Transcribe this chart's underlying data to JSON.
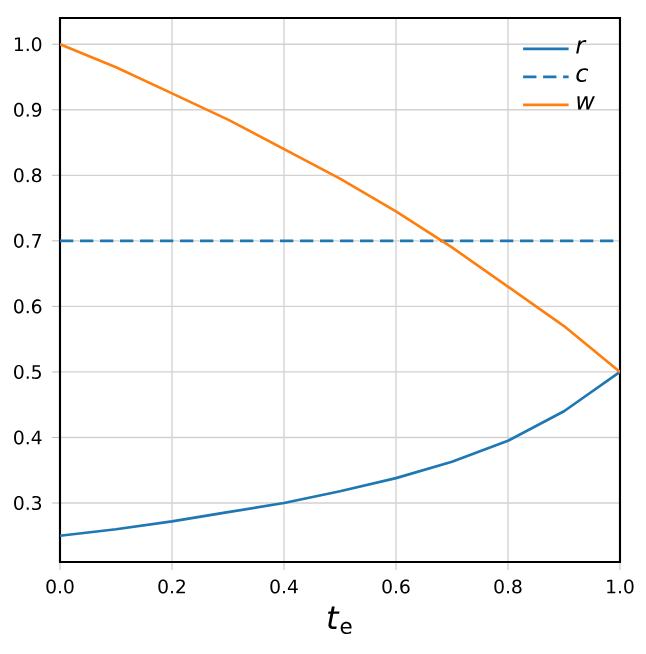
{
  "chart_data": {
    "type": "line",
    "xlabel": "*t*$_{e}$",
    "x": [
      0,
      0.1,
      0.2,
      0.3,
      0.4,
      0.5,
      0.6,
      0.7,
      0.8,
      0.9,
      1.0
    ],
    "series": [
      {
        "name": "r",
        "color": "#1f77b4",
        "values": [
          0.25,
          0.26,
          0.272,
          0.286,
          0.3,
          0.318,
          0.338,
          0.363,
          0.395,
          0.44,
          0.5
        ]
      },
      {
        "name": "c",
        "color": "#1f77b4",
        "line_style": "dashed",
        "values": [
          0.7,
          0.7,
          0.7,
          0.7,
          0.7,
          0.7,
          0.7,
          0.7,
          0.7,
          0.7,
          0.7
        ]
      },
      {
        "name": "w",
        "color": "#ff7f0e",
        "values": [
          1.0,
          0.965,
          0.925,
          0.885,
          0.84,
          0.795,
          0.745,
          0.69,
          0.63,
          0.57,
          0.5
        ]
      }
    ],
    "xlim": [
      0,
      1
    ],
    "ylim": [
      0.21,
      1.04
    ],
    "xticks": [
      {
        "value": 0,
        "label": "0.0"
      },
      0.2,
      0.4,
      0.6,
      0.8,
      {
        "value": 1,
        "label": "1.0"
      }
    ],
    "yticks": [
      0.3,
      0.4,
      0.5,
      0.6,
      0.7,
      0.8,
      0.9,
      {
        "value": 1,
        "label": "1.0"
      }
    ],
    "grid": true,
    "legend": "top right"
  }
}
